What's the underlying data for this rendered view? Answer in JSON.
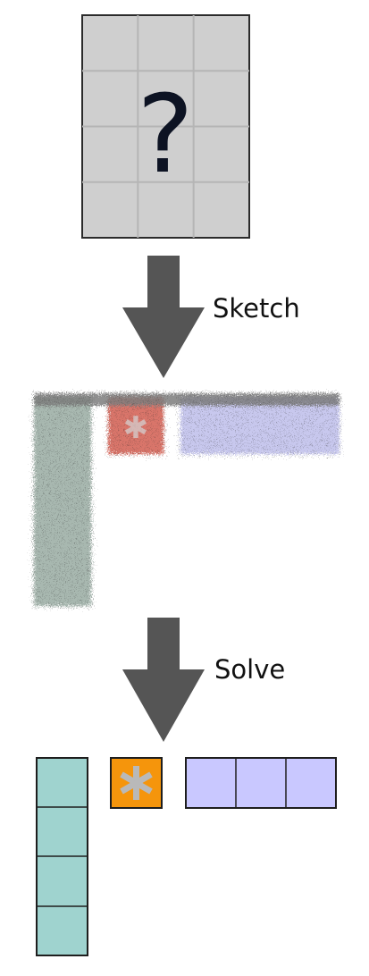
{
  "question_mark": "?",
  "steps": [
    {
      "label": "Sketch"
    },
    {
      "label": "Solve"
    }
  ],
  "grid": {
    "rows": 4,
    "cols": 3
  },
  "colors": {
    "grid_fill": "#cfcfcf",
    "grid_line": "#2b2b2b",
    "arrow": "#555555",
    "teal": "#9fd3cf",
    "orange": "#f5950c",
    "lavender": "#c9c8ff",
    "star": "#b9b9b9",
    "outline": "#1e1e1e",
    "sketch_teal": "#a8b8b0",
    "sketch_red": "#d9746a",
    "sketch_lavender": "#c8c8ee"
  },
  "solved_pieces": [
    {
      "name": "vertical-bar",
      "cells": 4,
      "orientation": "vertical",
      "color": "teal"
    },
    {
      "name": "star-tile",
      "cells": 1,
      "orientation": "single",
      "color": "orange",
      "icon": "asterisk-icon"
    },
    {
      "name": "horizontal-bar",
      "cells": 3,
      "orientation": "horizontal",
      "color": "lavender"
    }
  ]
}
